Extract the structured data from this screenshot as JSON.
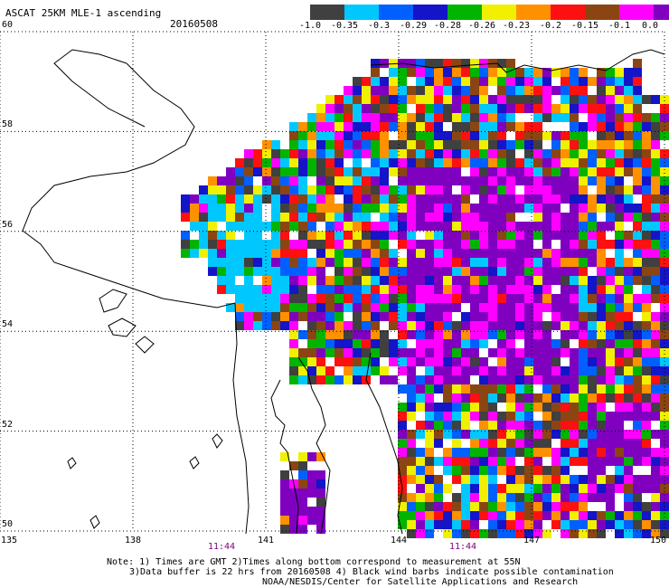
{
  "title": "ASCAT 25KM MLE-1 ascending",
  "date": "20160508",
  "colorbar": {
    "colors": [
      "#404040",
      "#00c8ff",
      "#0060ff",
      "#1414c8",
      "#00b400",
      "#f0f000",
      "#ff9000",
      "#ff1010",
      "#8b4513",
      "#ff00ff",
      "#8000c0"
    ],
    "labels": [
      "-1.0",
      "-0.35",
      "-0.3",
      "-0.29",
      "-0.28",
      "-0.26",
      "-0.23",
      "-0.2",
      "-0.15",
      "-0.1",
      "0.0"
    ]
  },
  "lat_labels": [
    "60",
    "58",
    "56",
    "54",
    "52",
    "50"
  ],
  "lon_labels": [
    "135",
    "138",
    "141",
    "144",
    "147",
    "150"
  ],
  "times": [
    "11:44",
    "11:44"
  ],
  "notes": [
    "Note: 1) Times are GMT 2)Times along bottom correspond to measurement at 55N",
    "3)Data buffer is 22 hrs from 20160508 4) Black wind barbs indicate possible contamination",
    "NOAA/NESDIS/Center for Satellite Applications and Research"
  ]
}
